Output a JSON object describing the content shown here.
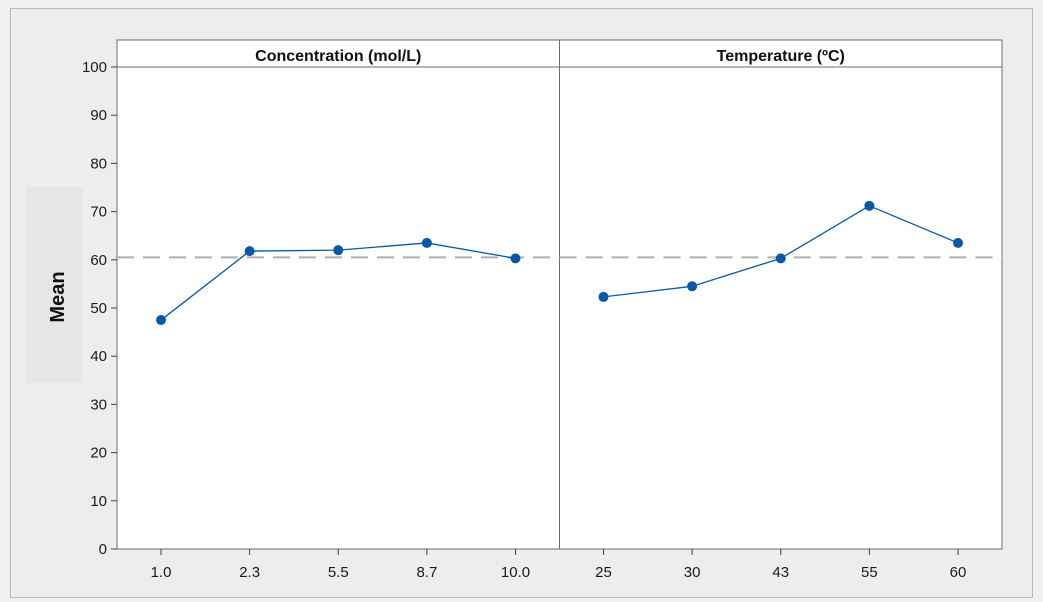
{
  "chart_data": {
    "type": "line",
    "ylabel": "Mean",
    "ylim": [
      0,
      100
    ],
    "yticks": [
      0,
      10,
      20,
      30,
      40,
      50,
      60,
      70,
      80,
      90,
      100
    ],
    "reference_line": {
      "value": 60.5,
      "style": "dashed",
      "color": "#b0b0b0"
    },
    "series_color": "#0b57a8",
    "grid": false,
    "panels": [
      {
        "title": "Concentration (mol/L)",
        "categories": [
          "1.0",
          "2.3",
          "5.5",
          "8.7",
          "10.0"
        ],
        "values": [
          47.5,
          61.8,
          62.0,
          63.5,
          60.3
        ]
      },
      {
        "title": "Temperature (ºC)",
        "categories": [
          "25",
          "30",
          "43",
          "55",
          "60"
        ],
        "values": [
          52.3,
          54.5,
          60.3,
          71.2,
          63.5
        ]
      }
    ]
  }
}
